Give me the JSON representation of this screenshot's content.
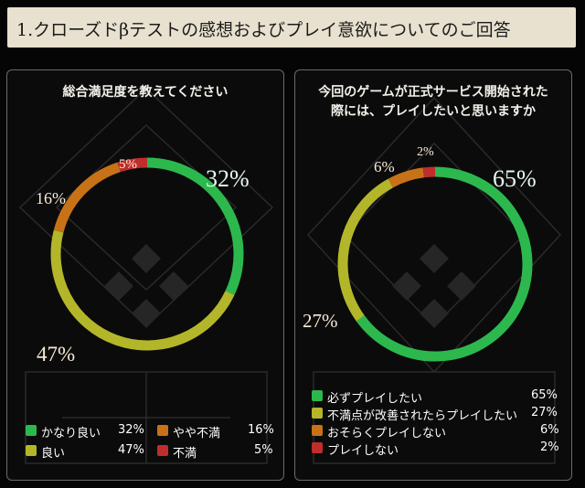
{
  "header": {
    "title": "1.クローズドβテストの感想およびプレイ意欲についてのご回答"
  },
  "colors": {
    "green": "#2db84e",
    "yellow_green": "#b4b62a",
    "orange": "#c87217",
    "red": "#bf2d2d"
  },
  "chart_data": [
    {
      "type": "pie",
      "title": "総合満足度を教えてください",
      "slices": [
        {
          "label": "かなり良い",
          "value": 32,
          "value_text": "32%",
          "color": "#2db84e"
        },
        {
          "label": "良い",
          "value": 47,
          "value_text": "47%",
          "color": "#b4b62a"
        },
        {
          "label": "やや不満",
          "value": 16,
          "value_text": "16%",
          "color": "#c87217"
        },
        {
          "label": "不満",
          "value": 5,
          "value_text": "5%",
          "color": "#bf2d2d"
        }
      ]
    },
    {
      "type": "pie",
      "title_lines": [
        "今回のゲームが正式サービス開始された",
        "際には、プレイしたいと思いますか"
      ],
      "slices": [
        {
          "label": "必ずプレイしたい",
          "value": 65,
          "value_text": "65%",
          "color": "#2db84e"
        },
        {
          "label": "不満点が改善されたらプレイしたい",
          "value": 27,
          "value_text": "27%",
          "color": "#b4b62a"
        },
        {
          "label": "おそらくプレイしない",
          "value": 6,
          "value_text": "6%",
          "color": "#c87217"
        },
        {
          "label": "プレイしない",
          "value": 2,
          "value_text": "2%",
          "color": "#bf2d2d"
        }
      ]
    }
  ]
}
